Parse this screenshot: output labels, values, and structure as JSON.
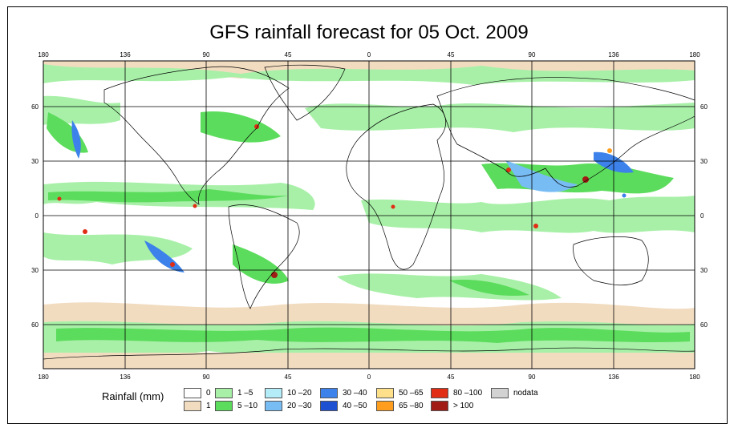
{
  "title": "GFS rainfall forecast for 05 Oct. 2009",
  "map": {
    "top_lon_labels": [
      "180",
      "136",
      "90",
      "45",
      "0",
      "45",
      "90",
      "136",
      "180"
    ],
    "bottom_lon_labels": [
      "180",
      "136",
      "90",
      "45",
      "0",
      "45",
      "90",
      "136",
      "180"
    ],
    "left_lat_labels": [
      "60",
      "30",
      "0",
      "30",
      "60"
    ],
    "right_lat_labels": [
      "60",
      "30",
      "0",
      "30",
      "60"
    ]
  },
  "legend": {
    "title": "Rainfall (mm)",
    "items": [
      {
        "label": "0",
        "color": "#ffffff"
      },
      {
        "label": "1",
        "color": "#f2dcc0"
      },
      {
        "label": "1 –5",
        "color": "#a8f0a8"
      },
      {
        "label": "5 –10",
        "color": "#5cdc5c"
      },
      {
        "label": "10 –20",
        "color": "#b4ecf8"
      },
      {
        "label": "20 –30",
        "color": "#78bcf4"
      },
      {
        "label": "30 –40",
        "color": "#3c82ea"
      },
      {
        "label": "40 –50",
        "color": "#1e50d2"
      },
      {
        "label": "50 –65",
        "color": "#ffe08a"
      },
      {
        "label": "65 –80",
        "color": "#ff9e1e"
      },
      {
        "label": "80 –100",
        "color": "#e02d14"
      },
      {
        "label": "> 100",
        "color": "#a01c14"
      },
      {
        "label": "nodata",
        "color": "#d2d2d2"
      }
    ]
  }
}
